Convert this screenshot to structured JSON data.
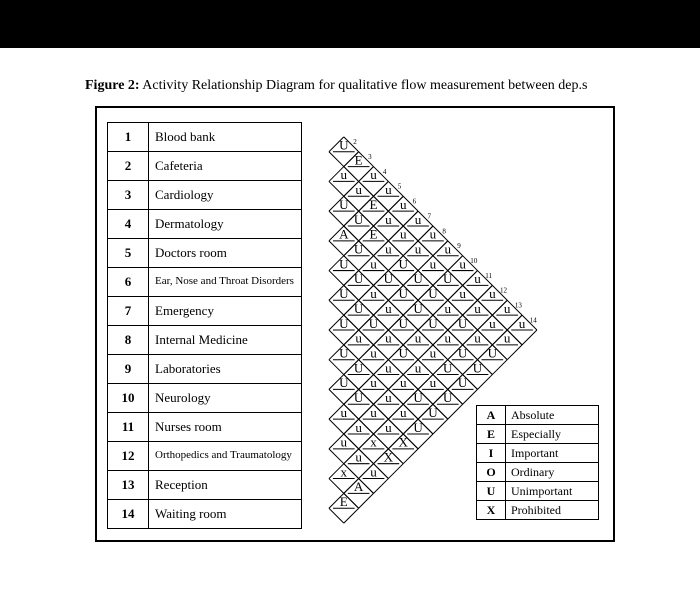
{
  "caption_prefix": "Figure 2:",
  "caption_text": " Activity Relationship Diagram for qualitative flow measurement between dep.s",
  "departments": [
    {
      "n": "1",
      "name": "Blood bank"
    },
    {
      "n": "2",
      "name": "Cafeteria"
    },
    {
      "n": "3",
      "name": "Cardiology"
    },
    {
      "n": "4",
      "name": "Dermatology"
    },
    {
      "n": "5",
      "name": "Doctors room"
    },
    {
      "n": "6",
      "name": "Ear, Nose and Throat Disorders"
    },
    {
      "n": "7",
      "name": "Emergency"
    },
    {
      "n": "8",
      "name": "Internal Medicine"
    },
    {
      "n": "9",
      "name": "Laboratories"
    },
    {
      "n": "10",
      "name": "Neurology"
    },
    {
      "n": "11",
      "name": "Nurses room"
    },
    {
      "n": "12",
      "name": "Orthopedics and Traumatology"
    },
    {
      "n": "13",
      "name": "Reception"
    },
    {
      "n": "14",
      "name": "Waiting room"
    }
  ],
  "legend": [
    {
      "c": "A",
      "l": "Absolute"
    },
    {
      "c": "E",
      "l": "Especially"
    },
    {
      "c": "I",
      "l": "Important"
    },
    {
      "c": "O",
      "l": "Ordinary"
    },
    {
      "c": "U",
      "l": "Unimportant"
    },
    {
      "c": "X",
      "l": "Prohibited"
    }
  ],
  "rel_grid": {
    "n": 14,
    "row_h": 29.5,
    "cell": 20.85,
    "top_font": 13,
    "bottom_font": 10,
    "line_color": "#000000",
    "line_w": 1.0,
    "col_label_font": 7,
    "rows": {
      "1": {
        "2": [
          "U",
          ""
        ],
        "3": [
          "E",
          ""
        ],
        "4": [
          "u",
          ""
        ],
        "5": [
          "u",
          ""
        ],
        "6": [
          "u",
          ""
        ],
        "7": [
          "u",
          ""
        ],
        "8": [
          "u",
          ""
        ],
        "9": [
          "u",
          ""
        ],
        "10": [
          "u",
          ""
        ],
        "11": [
          "u",
          ""
        ],
        "12": [
          "u",
          ""
        ],
        "13": [
          "u",
          ""
        ],
        "14": [
          "u",
          ""
        ]
      },
      "2": {
        "3": [
          "u",
          ""
        ],
        "4": [
          "u",
          ""
        ],
        "5": [
          "E",
          ""
        ],
        "6": [
          "u",
          ""
        ],
        "7": [
          "u",
          ""
        ],
        "8": [
          "u",
          ""
        ],
        "9": [
          "u",
          ""
        ],
        "10": [
          "U",
          ""
        ],
        "11": [
          "u",
          ""
        ],
        "12": [
          "u",
          ""
        ],
        "13": [
          "u",
          ""
        ],
        "14": [
          "u",
          ""
        ]
      },
      "3": {
        "4": [
          "U",
          ""
        ],
        "5": [
          "U",
          ""
        ],
        "6": [
          "E",
          ""
        ],
        "7": [
          "u",
          ""
        ],
        "8": [
          "U",
          ""
        ],
        "9": [
          "U",
          ""
        ],
        "10": [
          "U",
          ""
        ],
        "11": [
          "u",
          ""
        ],
        "12": [
          "U",
          ""
        ],
        "13": [
          "u",
          ""
        ],
        "14": [
          "U",
          ""
        ]
      },
      "4": {
        "5": [
          "A",
          ""
        ],
        "6": [
          "U",
          ""
        ],
        "7": [
          "u",
          ""
        ],
        "8": [
          "U",
          ""
        ],
        "9": [
          "U",
          ""
        ],
        "10": [
          "U",
          ""
        ],
        "11": [
          "U",
          ""
        ],
        "12": [
          "u",
          ""
        ],
        "13": [
          "U",
          ""
        ],
        "14": [
          "U",
          ""
        ]
      },
      "5": {
        "6": [
          "U",
          ""
        ],
        "7": [
          "U",
          ""
        ],
        "8": [
          "u",
          ""
        ],
        "9": [
          "u",
          ""
        ],
        "10": [
          "U",
          ""
        ],
        "11": [
          "u",
          ""
        ],
        "12": [
          "u",
          ""
        ],
        "13": [
          "U",
          ""
        ],
        "14": [
          "U",
          ""
        ]
      },
      "6": {
        "7": [
          "U",
          ""
        ],
        "8": [
          "U",
          ""
        ],
        "9": [
          "U",
          ""
        ],
        "10": [
          "u",
          ""
        ],
        "11": [
          "U",
          ""
        ],
        "12": [
          "u",
          ""
        ],
        "13": [
          "u",
          ""
        ],
        "14": [
          "U",
          ""
        ]
      },
      "7": {
        "8": [
          "U",
          ""
        ],
        "9": [
          "u",
          ""
        ],
        "10": [
          "u",
          ""
        ],
        "11": [
          "u",
          ""
        ],
        "12": [
          "u",
          ""
        ],
        "13": [
          "U",
          ""
        ],
        "14": [
          "U",
          ""
        ]
      },
      "8": {
        "9": [
          "U",
          ""
        ],
        "10": [
          "U",
          ""
        ],
        "11": [
          "u",
          ""
        ],
        "12": [
          "u",
          ""
        ],
        "13": [
          "u",
          ""
        ],
        "14": [
          "U",
          ""
        ]
      },
      "9": {
        "10": [
          "U",
          ""
        ],
        "11": [
          "U",
          ""
        ],
        "12": [
          "u",
          ""
        ],
        "13": [
          "u",
          ""
        ],
        "14": [
          "X",
          ""
        ]
      },
      "10": {
        "11": [
          "u",
          ""
        ],
        "12": [
          "u",
          ""
        ],
        "13": [
          "x",
          ""
        ],
        "14": [
          "X",
          ""
        ]
      },
      "11": {
        "12": [
          "u",
          ""
        ],
        "13": [
          "u",
          ""
        ],
        "14": [
          "u",
          ""
        ]
      },
      "12": {
        "13": [
          "x",
          ""
        ],
        "14": [
          "A",
          ""
        ]
      },
      "13": {
        "14": [
          "E",
          ""
        ]
      }
    },
    "last_cell": "A"
  }
}
